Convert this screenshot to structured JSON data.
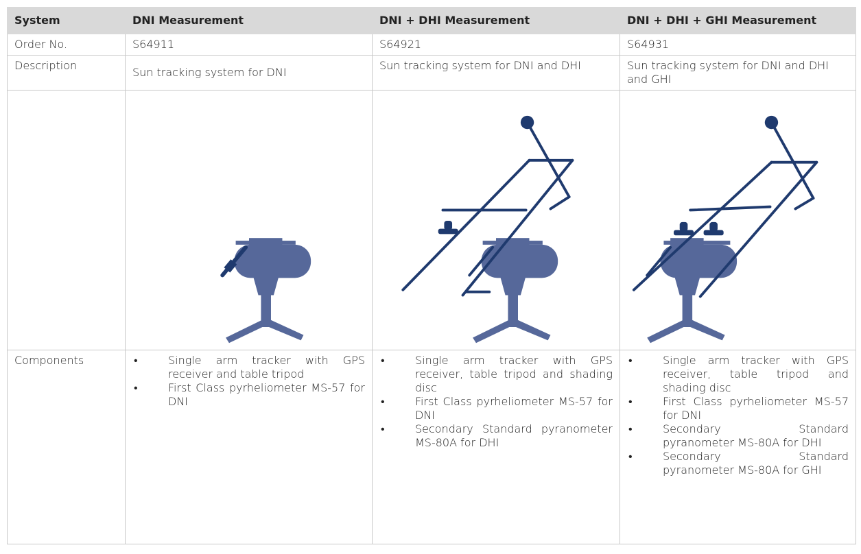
{
  "table": {
    "header": [
      "System",
      "DNI Measurement",
      "DNI + DHI Measurement",
      "DNI + DHI + GHI Measurement"
    ],
    "rows": [
      [
        "Order No.",
        "S64911",
        "S64921",
        "S64931"
      ],
      [
        "Description",
        "Sun tracking system for DNI",
        "Sun tracking system for DNI and DHI",
        "Sun tracking system for DNI and DHI and GHI"
      ]
    ],
    "components": {
      "label": "Components",
      "items": [
        [
          "Single arm tracker with GPS receiver and table tripod",
          "First Class pyrheliometer MS-57 for DNI"
        ],
        [
          "Single arm tracker with GPS receiver, table tripod and shading disc",
          "First Class pyrheliometer MS-57 for DNI",
          "Secondary Standard pyranometer MS-80A for DHI"
        ],
        [
          "Single arm tracker with GPS receiver, table tripod and shading disc",
          "First Class pyrheliometer MS-57 for DNI",
          "Secondary Standard pyranometer MS-80A for DHI",
          "Secondary Standard pyranometer MS-80A for GHI"
        ]
      ]
    }
  }
}
